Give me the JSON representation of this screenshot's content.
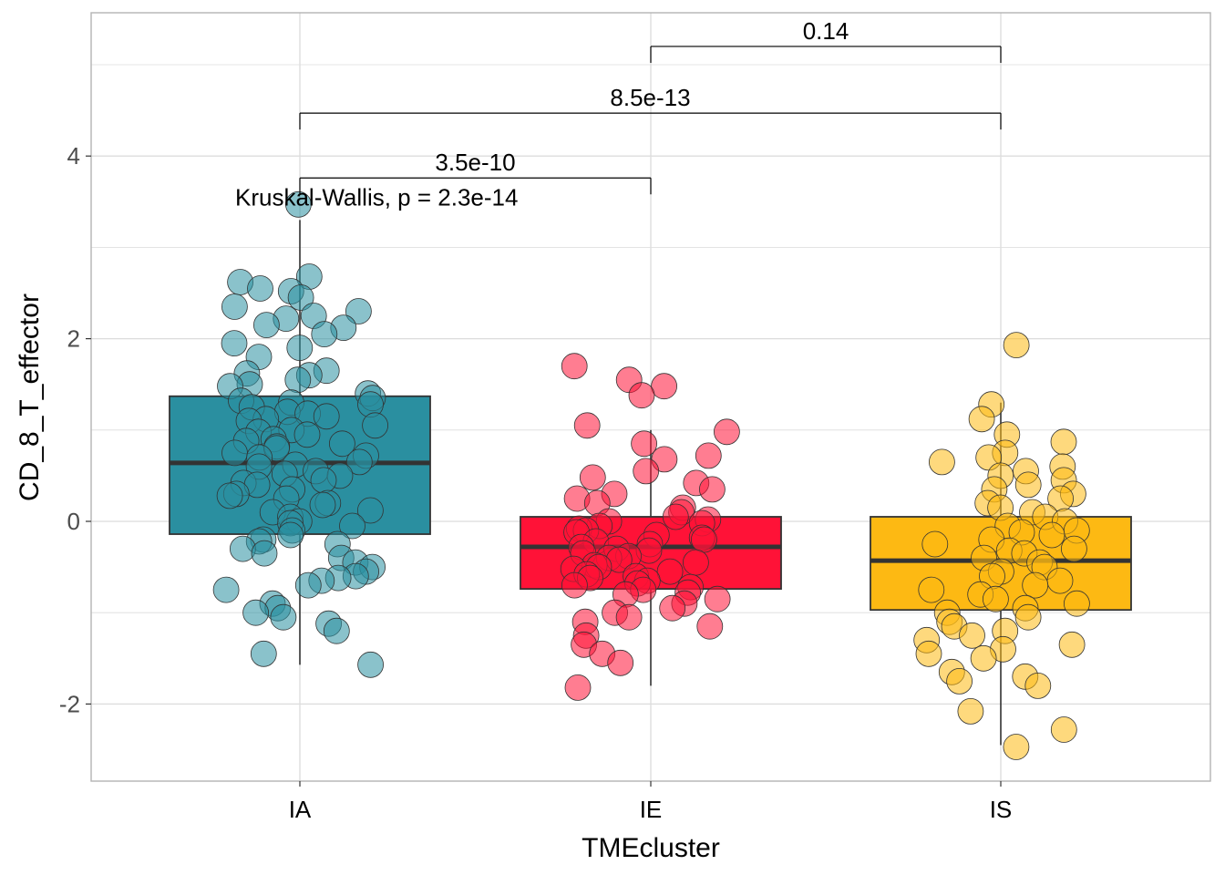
{
  "chart_data": {
    "type": "box",
    "xlabel": "TMEcluster",
    "ylabel": "CD_8_T_effector",
    "ylim": [
      -2.85,
      5.55
    ],
    "y_ticks": [
      -2,
      0,
      2,
      4
    ],
    "y_tick_labels": [
      "-2",
      "0",
      "2",
      "4"
    ],
    "grid": true,
    "groups": [
      {
        "name": "IA",
        "color": "#2A8FA0",
        "box": {
          "q1": -0.14,
          "median": 0.64,
          "q3": 1.37,
          "whisker_low": -1.57,
          "whisker_high": 3.3
        },
        "points": [
          3.47,
          2.68,
          2.62,
          2.55,
          2.52,
          2.45,
          2.35,
          2.3,
          2.25,
          2.22,
          2.15,
          2.12,
          2.05,
          1.95,
          1.9,
          1.8,
          1.65,
          1.62,
          1.6,
          1.55,
          1.5,
          1.48,
          1.4,
          1.35,
          1.32,
          1.3,
          1.28,
          1.25,
          1.2,
          1.18,
          1.15,
          1.12,
          1.1,
          1.05,
          1.0,
          0.98,
          0.95,
          0.9,
          0.88,
          0.85,
          0.82,
          0.8,
          0.75,
          0.72,
          0.7,
          0.65,
          0.62,
          0.6,
          0.55,
          0.52,
          0.5,
          0.45,
          0.42,
          0.4,
          0.35,
          0.3,
          0.28,
          0.25,
          0.2,
          0.18,
          0.12,
          0.1,
          0.05,
          0.0,
          -0.02,
          -0.05,
          -0.1,
          -0.15,
          -0.2,
          -0.22,
          -0.25,
          -0.3,
          -0.35,
          -0.4,
          -0.45,
          -0.5,
          -0.55,
          -0.6,
          -0.62,
          -0.65,
          -0.7,
          -0.75,
          -0.9,
          -0.95,
          -1.0,
          -1.05,
          -1.12,
          -1.2,
          -1.45,
          -1.57
        ]
      },
      {
        "name": "IE",
        "color": "#FF1237",
        "box": {
          "q1": -0.74,
          "median": -0.28,
          "q3": 0.05,
          "whisker_low": -1.8,
          "whisker_high": 1.0
        },
        "points": [
          1.7,
          1.55,
          1.48,
          1.38,
          1.05,
          0.98,
          0.85,
          0.72,
          0.68,
          0.55,
          0.48,
          0.42,
          0.35,
          0.3,
          0.25,
          0.2,
          0.15,
          0.1,
          0.05,
          0.02,
          0.0,
          -0.02,
          -0.05,
          -0.08,
          -0.1,
          -0.12,
          -0.15,
          -0.18,
          -0.2,
          -0.22,
          -0.25,
          -0.28,
          -0.3,
          -0.32,
          -0.35,
          -0.38,
          -0.4,
          -0.42,
          -0.45,
          -0.48,
          -0.5,
          -0.52,
          -0.55,
          -0.58,
          -0.6,
          -0.62,
          -0.65,
          -0.68,
          -0.7,
          -0.72,
          -0.75,
          -0.78,
          -0.8,
          -0.85,
          -0.9,
          -0.95,
          -1.0,
          -1.05,
          -1.1,
          -1.15,
          -1.25,
          -1.35,
          -1.45,
          -1.55,
          -1.82
        ]
      },
      {
        "name": "IS",
        "color": "#FDB913",
        "box": {
          "q1": -0.97,
          "median": -0.43,
          "q3": 0.05,
          "whisker_low": -2.45,
          "whisker_high": 1.3
        },
        "points": [
          1.93,
          1.28,
          1.12,
          0.95,
          0.87,
          0.75,
          0.7,
          0.65,
          0.6,
          0.55,
          0.5,
          0.45,
          0.4,
          0.35,
          0.3,
          0.25,
          0.2,
          0.15,
          0.1,
          0.05,
          0.0,
          -0.05,
          -0.1,
          -0.12,
          -0.15,
          -0.2,
          -0.25,
          -0.3,
          -0.32,
          -0.35,
          -0.4,
          -0.45,
          -0.5,
          -0.55,
          -0.6,
          -0.65,
          -0.7,
          -0.75,
          -0.8,
          -0.85,
          -0.9,
          -0.95,
          -1.0,
          -1.05,
          -1.1,
          -1.15,
          -1.2,
          -1.25,
          -1.3,
          -1.35,
          -1.4,
          -1.45,
          -1.5,
          -1.65,
          -1.7,
          -1.75,
          -1.8,
          -2.08,
          -2.28,
          -2.47
        ]
      }
    ],
    "comparisons": [
      {
        "from": "IE",
        "to": "IS",
        "label": "0.14",
        "y": 5.2
      },
      {
        "from": "IA",
        "to": "IS",
        "label": "8.5e-13",
        "y": 4.47
      },
      {
        "from": "IA",
        "to": "IE",
        "label": "3.5e-10",
        "y": 3.76
      }
    ],
    "global_test": {
      "label": "Kruskal-Wallis, p = 2.3e-14",
      "x_group": "IA",
      "y": 3.55
    }
  }
}
